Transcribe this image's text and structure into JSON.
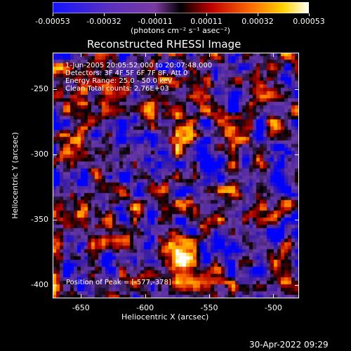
{
  "colorbar": {
    "tick_labels": [
      "-0.00053",
      "-0.00032",
      "-0.00011",
      "0.00011",
      "0.00032",
      "0.00053"
    ],
    "unit_label": "(photons cm⁻² s⁻¹ asec⁻²)"
  },
  "plot": {
    "title": "Reconstructed RHESSI Image",
    "xlabel": "Heliocentric X (arcsec)",
    "ylabel": "Heliocentric Y (arcsec)",
    "x_ticks": [
      "-650",
      "-600",
      "-550",
      "-500"
    ],
    "y_ticks": [
      "-250",
      "-300",
      "-350",
      "-400"
    ]
  },
  "info": {
    "time_range": "1-Jun-2005 20:05:52.000 to 20:07:48.000",
    "detectors": "Detectors: 3F 4F 5F 6F 7F 8F, Att 0",
    "energy_range": "Energy Range: 25.0 - 50.0 keV",
    "method_counts": "Clean     Total counts: 2.76E+03",
    "peak_position": "Position of Peak = [-577,-378]"
  },
  "timestamp": "30-Apr-2022 09:29",
  "chart_data": {
    "type": "heatmap",
    "title": "Reconstructed RHESSI Image",
    "xlabel": "Heliocentric X (arcsec)",
    "ylabel": "Heliocentric Y (arcsec)",
    "xlim": [
      -672,
      -480
    ],
    "ylim": [
      -410,
      -222
    ],
    "x_ticks": [
      -650,
      -600,
      -550,
      -500
    ],
    "y_ticks": [
      -250,
      -300,
      -350,
      -400
    ],
    "colorbar_range": [
      -0.00053,
      0.00053
    ],
    "colormap": [
      "#0000ff",
      "#4020a0",
      "#6b3aa8",
      "#000000",
      "#b00000",
      "#ff6a00",
      "#ffd000",
      "#ffffff"
    ],
    "peak_position": [
      -577,
      -378
    ]
  }
}
